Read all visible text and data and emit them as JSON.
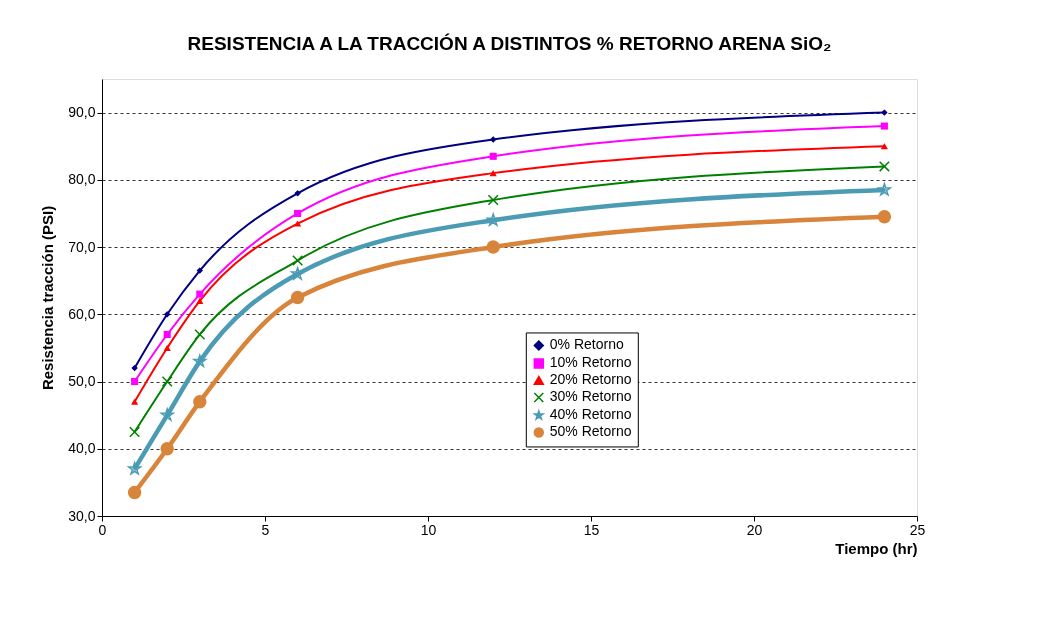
{
  "chart_data": {
    "type": "line",
    "title": "RESISTENCIA A LA TRACCIÓN A DISTINTOS % RETORNO ARENA SiO₂",
    "xlabel": "Tiempo (hr)",
    "ylabel": "Resistencia tracción (PSI)",
    "x": [
      1,
      2,
      3,
      6,
      12,
      24
    ],
    "series": [
      {
        "name": "0% Retorno",
        "color": "#000080",
        "marker": "diamond",
        "values": [
          52,
          60,
          66.5,
          78,
          86,
          90
        ]
      },
      {
        "name": "10% Retorno",
        "color": "#ff00ff",
        "marker": "square",
        "values": [
          50,
          57,
          63,
          75,
          83.5,
          88
        ]
      },
      {
        "name": "20% Retorno",
        "color": "#ff0000",
        "marker": "triangle",
        "values": [
          47,
          55,
          62,
          73.5,
          81,
          85
        ]
      },
      {
        "name": "30% Retorno",
        "color": "#008000",
        "marker": "cross",
        "values": [
          42.5,
          50,
          57,
          68,
          77,
          82
        ]
      },
      {
        "name": "40% Retorno",
        "color": "#4b9bb5",
        "marker": "star",
        "values": [
          37,
          45,
          53,
          66,
          74,
          78.5
        ]
      },
      {
        "name": "50% Retorno",
        "color": "#d9843b",
        "marker": "circle",
        "values": [
          33.5,
          40,
          47,
          62.5,
          70,
          74.5
        ]
      }
    ],
    "xlim": [
      0,
      25
    ],
    "xticks": [
      0,
      5,
      10,
      15,
      20,
      25
    ],
    "ylim": [
      30,
      95
    ],
    "yticks": [
      {
        "value": 30,
        "label": "30,0"
      },
      {
        "value": 40,
        "label": "40,0"
      },
      {
        "value": 50,
        "label": "50,0"
      },
      {
        "value": 60,
        "label": "60,0"
      },
      {
        "value": 70,
        "label": "70,0"
      },
      {
        "value": 80,
        "label": "80,0"
      },
      {
        "value": 90,
        "label": "90,0"
      }
    ],
    "grid": "y",
    "legend": "bottom right",
    "line_style": "solid"
  }
}
